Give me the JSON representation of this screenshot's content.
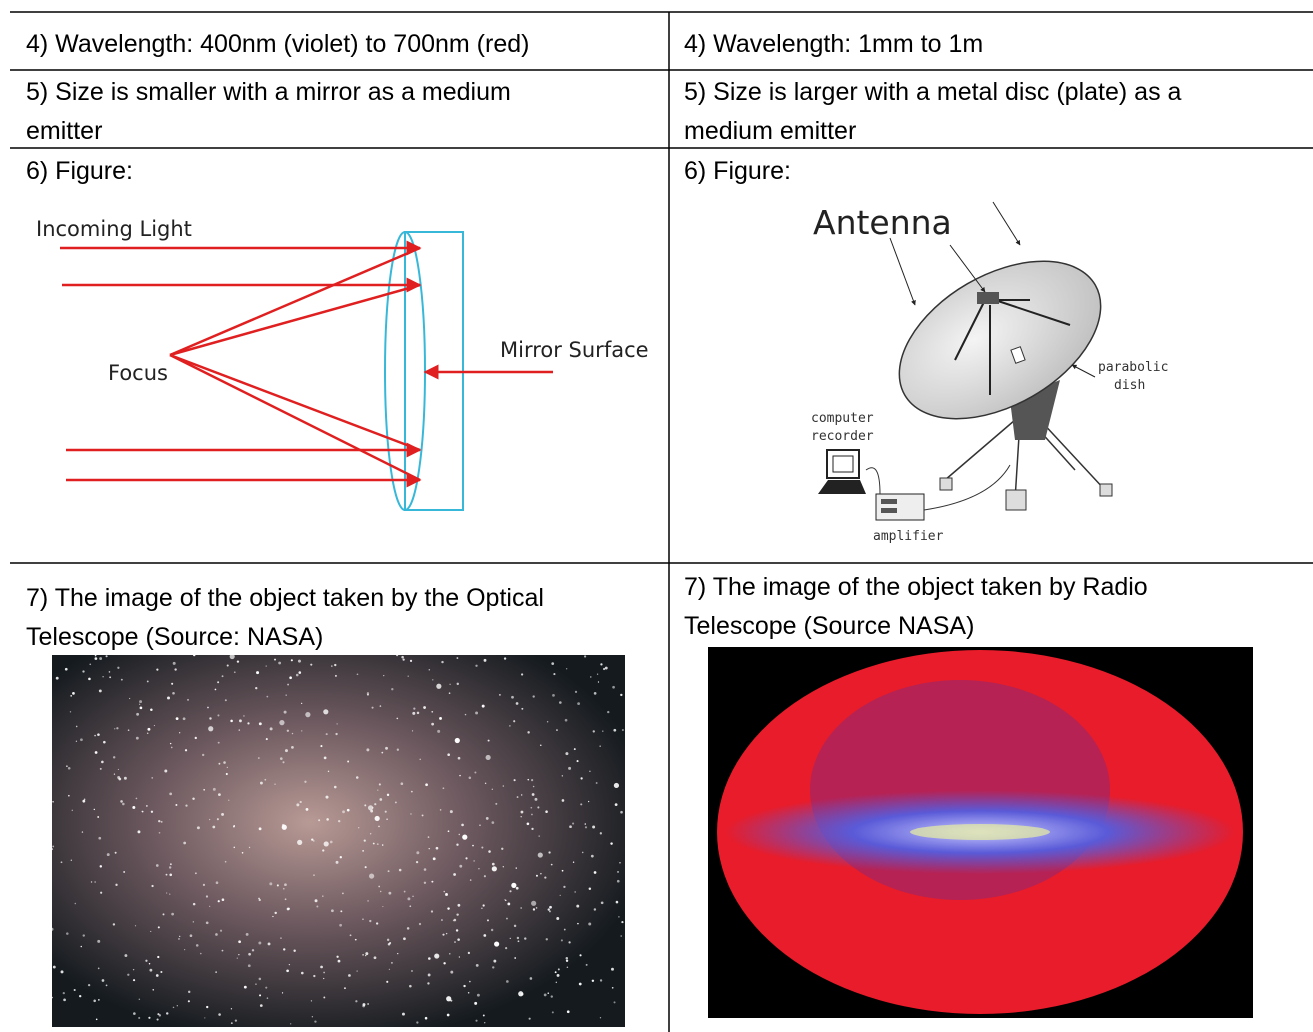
{
  "table": {
    "rows": [
      [
        [
          "4) Wavelength: 400nm (violet) to 700nm (red)"
        ],
        [
          "4) Wavelength: 1mm to 1m"
        ]
      ],
      [
        [
          "5) Size is smaller with a mirror as a medium",
          "emitter"
        ],
        [
          "5) Size is larger with a metal disc (plate) as a",
          "medium emitter"
        ]
      ],
      [
        [
          "6) Figure:"
        ],
        [
          "6) Figure:"
        ]
      ],
      [
        [
          "7)  The image of the object taken by the Optical",
          "Telescope (Source: NASA)"
        ],
        [
          "7) The image of the object taken by Radio",
          "Telescope (Source NASA)"
        ]
      ]
    ]
  },
  "figures": {
    "optical": {
      "incoming": "Incoming Light",
      "focus": "Focus",
      "mirror": "Mirror Surface"
    },
    "radio": {
      "title": "Antenna",
      "dish": [
        "parabolic",
        "dish"
      ],
      "computer": [
        "computer",
        "recorder"
      ],
      "amplifier": "amplifier"
    }
  }
}
